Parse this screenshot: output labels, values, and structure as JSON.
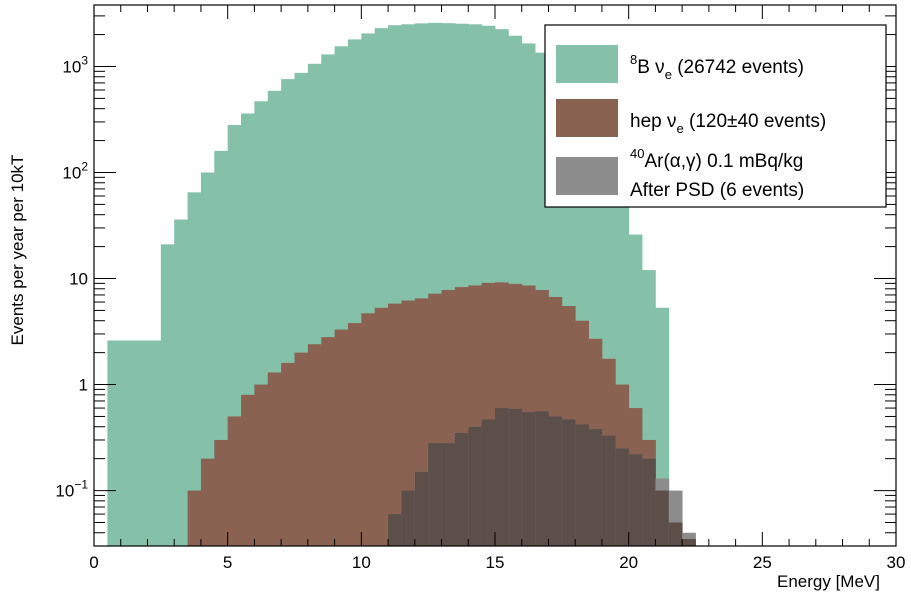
{
  "chart_data": {
    "type": "bar",
    "subtype": "stacked-histogram-overlay",
    "xlabel": "Energy [MeV]",
    "ylabel": "Events per year per 10kT",
    "xlim": [
      0,
      30
    ],
    "ylim": [
      0.03,
      3800
    ],
    "yscale": "log",
    "bin_width": 0.5,
    "x_ticks": [
      "0",
      "5",
      "10",
      "15",
      "20",
      "25",
      "30"
    ],
    "y_ticks": [
      {
        "value": 0.1,
        "base": "10",
        "exp": "−1"
      },
      {
        "value": 1,
        "label": "1"
      },
      {
        "value": 10,
        "label": "10"
      },
      {
        "value": 100,
        "base": "10",
        "exp": "2"
      },
      {
        "value": 1000,
        "base": "10",
        "exp": "3"
      }
    ],
    "legend_position": "top-right",
    "series": [
      {
        "name": "8B νe (26742 events)",
        "legend": {
          "sup": "8",
          "main": "B ν",
          "sub": "e",
          "rest": " (26742 events)"
        },
        "color": "#84c1a8",
        "x_start": 0.5,
        "values": [
          2.6,
          2.6,
          2.6,
          2.6,
          21,
          36,
          65,
          100,
          160,
          280,
          360,
          470,
          590,
          760,
          870,
          1060,
          1300,
          1550,
          1800,
          2050,
          2300,
          2450,
          2500,
          2550,
          2580,
          2560,
          2530,
          2500,
          2420,
          2250,
          1950,
          1650,
          1350,
          1050,
          720,
          470,
          305,
          160,
          62,
          26,
          12,
          5.3
        ]
      },
      {
        "name": "hep νe (120±40 events)",
        "legend": {
          "main": "hep ν",
          "sub": "e",
          "rest": " (120±40 events)"
        },
        "color": "#8a6252",
        "x_start": 2.5,
        "values": [
          0.03,
          0.03,
          0.1,
          0.2,
          0.3,
          0.5,
          0.8,
          1.0,
          1.3,
          1.6,
          2.0,
          2.4,
          2.8,
          3.3,
          3.8,
          4.7,
          5.3,
          5.8,
          6.2,
          6.5,
          7.2,
          7.8,
          8.3,
          8.6,
          9.1,
          9.2,
          8.9,
          8.6,
          7.8,
          6.7,
          5.5,
          4.0,
          2.7,
          1.75,
          1.0,
          0.6,
          0.3,
          0.1,
          0.05,
          0.035
        ]
      },
      {
        "name": "40Ar(α,γ) 0.1 mBq/kg After PSD (6 events)",
        "legend": {
          "sup": "40",
          "main": "Ar(α,γ) 0.1 mBq/kg",
          "line2": "After PSD (6 events)"
        },
        "color": "#8c8c8c",
        "x_start": 10.5,
        "values": [
          0.03,
          0.06,
          0.1,
          0.15,
          0.28,
          0.28,
          0.35,
          0.4,
          0.47,
          0.6,
          0.59,
          0.55,
          0.56,
          0.5,
          0.47,
          0.42,
          0.38,
          0.33,
          0.25,
          0.22,
          0.2,
          0.13,
          0.1,
          0.04
        ]
      }
    ]
  }
}
